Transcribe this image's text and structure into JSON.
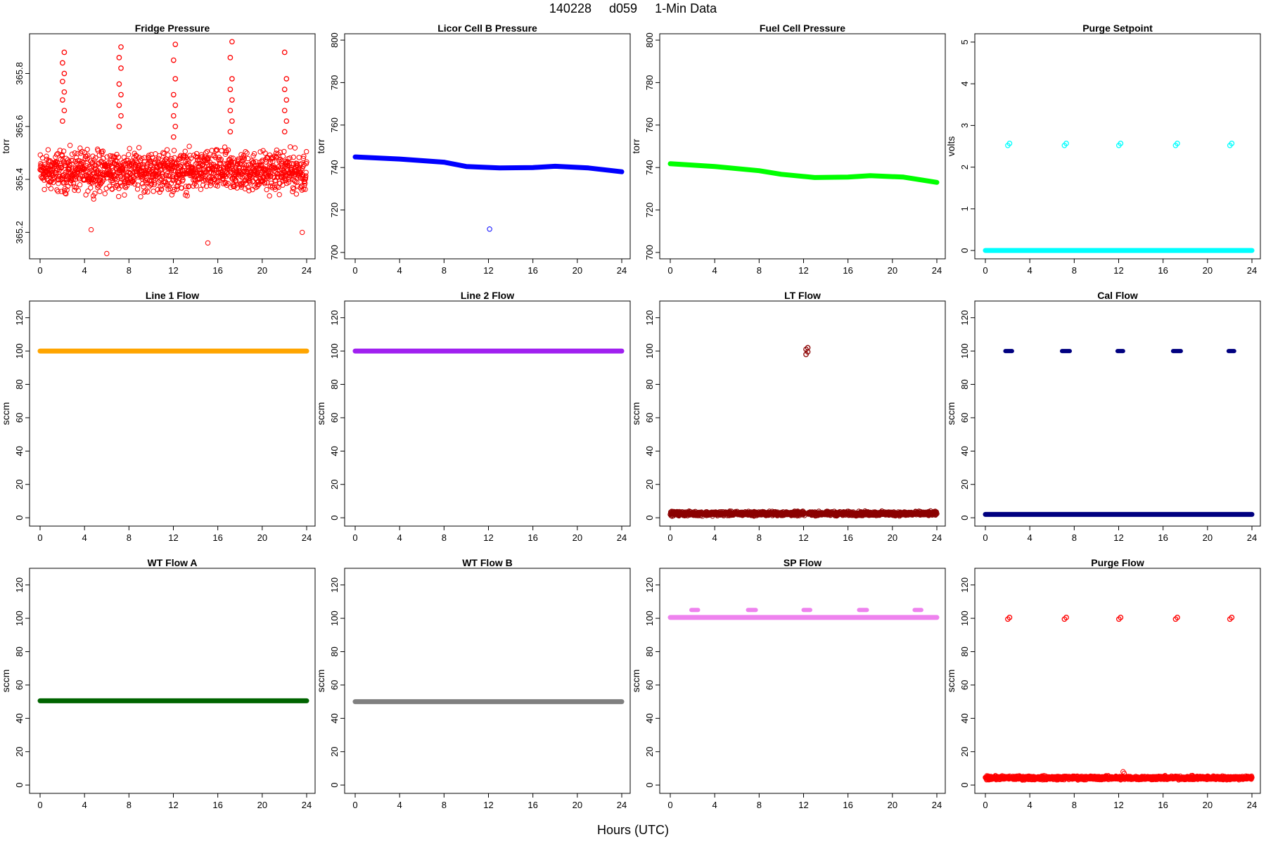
{
  "header": {
    "date_code": "140228",
    "day_code": "d059",
    "resolution": "1-Min Data"
  },
  "x_axis_label": "Hours (UTC)",
  "chart_data": [
    {
      "type": "scatter",
      "title": "Fridge Pressure",
      "ylabel": "torr",
      "color": "#ff0000",
      "xlim": [
        0,
        24
      ],
      "xticks": [
        0,
        4,
        8,
        12,
        16,
        20,
        24
      ],
      "ylim": [
        365.1,
        365.95
      ],
      "yticks": [
        365.2,
        365.4,
        365.6,
        365.8
      ],
      "series": [
        {
          "baseline": {
            "from": 0,
            "to": 24,
            "y": 365.43,
            "spread": 0.11
          },
          "segments": [],
          "clusters": [
            {
              "x": 2.1,
              "y": [
                365.62,
                365.66,
                365.7,
                365.73,
                365.77,
                365.8,
                365.84,
                365.88
              ]
            },
            {
              "x": 7.2,
              "y": [
                365.6,
                365.64,
                365.68,
                365.72,
                365.76,
                365.82,
                365.86,
                365.9
              ]
            },
            {
              "x": 12.1,
              "y": [
                365.56,
                365.6,
                365.64,
                365.68,
                365.72,
                365.78,
                365.85,
                365.91
              ]
            },
            {
              "x": 17.2,
              "y": [
                365.58,
                365.62,
                365.66,
                365.7,
                365.74,
                365.78,
                365.86,
                365.92
              ]
            },
            {
              "x": 22.1,
              "y": [
                365.58,
                365.62,
                365.66,
                365.7,
                365.74,
                365.78,
                365.88
              ]
            }
          ],
          "points": [
            {
              "x": 6.0,
              "y": 365.12
            },
            {
              "x": 15.1,
              "y": 365.16
            },
            {
              "x": 23.6,
              "y": 365.2
            },
            {
              "x": 4.6,
              "y": 365.21
            }
          ]
        }
      ]
    },
    {
      "type": "scatter",
      "title": "Licor Cell B Pressure",
      "ylabel": "torr",
      "color": "#0000ff",
      "xlim": [
        0,
        24
      ],
      "xticks": [
        0,
        4,
        8,
        12,
        16,
        20,
        24
      ],
      "ylim": [
        697,
        803
      ],
      "yticks": [
        700,
        720,
        740,
        760,
        780,
        800
      ],
      "series": [
        {
          "segments": [
            {
              "x": [
                0,
                4,
                8,
                10,
                13,
                16,
                18,
                21,
                24
              ],
              "y": [
                745,
                744,
                742.5,
                740.5,
                739.8,
                740,
                740.6,
                739.8,
                738
              ]
            }
          ],
          "clusters": [],
          "points": [
            {
              "x": 12.1,
              "y": 711
            }
          ]
        }
      ]
    },
    {
      "type": "scatter",
      "title": "Fuel Cell Pressure",
      "ylabel": "torr",
      "color": "#00ff00",
      "xlim": [
        0,
        24
      ],
      "xticks": [
        0,
        4,
        8,
        12,
        16,
        20,
        24
      ],
      "ylim": [
        697,
        803
      ],
      "yticks": [
        700,
        720,
        740,
        760,
        780,
        800
      ],
      "series": [
        {
          "segments": [
            {
              "x": [
                0,
                4,
                8,
                10,
                13,
                16,
                18,
                21,
                24
              ],
              "y": [
                741.8,
                740.5,
                738.5,
                736.8,
                735.3,
                735.5,
                736.2,
                735.5,
                733
              ]
            }
          ],
          "clusters": [],
          "points": []
        }
      ]
    },
    {
      "type": "scatter",
      "title": "Purge Setpoint",
      "ylabel": "volts",
      "color": "#00ffff",
      "xlim": [
        0,
        24
      ],
      "xticks": [
        0,
        4,
        8,
        12,
        16,
        20,
        24
      ],
      "ylim": [
        -0.2,
        5.2
      ],
      "yticks": [
        0,
        1,
        2,
        3,
        4,
        5
      ],
      "series": [
        {
          "segments": [
            {
              "x": [
                0,
                24
              ],
              "y": [
                0,
                0
              ]
            }
          ],
          "clusters": [
            {
              "x": 2.1,
              "y": [
                2.52,
                2.57
              ]
            },
            {
              "x": 7.2,
              "y": [
                2.52,
                2.57
              ]
            },
            {
              "x": 12.1,
              "y": [
                2.52,
                2.57
              ]
            },
            {
              "x": 17.2,
              "y": [
                2.52,
                2.57
              ]
            },
            {
              "x": 22.1,
              "y": [
                2.52,
                2.57
              ]
            }
          ],
          "points": []
        }
      ]
    },
    {
      "type": "scatter",
      "title": "Line 1 Flow",
      "ylabel": "sccm",
      "color": "#ffa500",
      "xlim": [
        0,
        24
      ],
      "xticks": [
        0,
        4,
        8,
        12,
        16,
        20,
        24
      ],
      "ylim": [
        -5,
        130
      ],
      "yticks": [
        0,
        20,
        40,
        60,
        80,
        100,
        120
      ],
      "series": [
        {
          "segments": [
            {
              "x": [
                0,
                24
              ],
              "y": [
                100,
                100
              ]
            }
          ],
          "clusters": [],
          "points": []
        }
      ]
    },
    {
      "type": "scatter",
      "title": "Line 2 Flow",
      "ylabel": "sccm",
      "color": "#a020f0",
      "xlim": [
        0,
        24
      ],
      "xticks": [
        0,
        4,
        8,
        12,
        16,
        20,
        24
      ],
      "ylim": [
        -5,
        130
      ],
      "yticks": [
        0,
        20,
        40,
        60,
        80,
        100,
        120
      ],
      "series": [
        {
          "segments": [
            {
              "x": [
                0,
                24
              ],
              "y": [
                100,
                100
              ]
            }
          ],
          "clusters": [],
          "points": []
        }
      ]
    },
    {
      "type": "scatter",
      "title": "LT Flow",
      "ylabel": "sccm",
      "color": "#8b0000",
      "xlim": [
        0,
        24
      ],
      "xticks": [
        0,
        4,
        8,
        12,
        16,
        20,
        24
      ],
      "ylim": [
        -5,
        130
      ],
      "yticks": [
        0,
        20,
        40,
        60,
        80,
        100,
        120
      ],
      "series": [
        {
          "baseline": {
            "from": 0,
            "to": 24,
            "y": 2.5,
            "spread": 1.8,
            "gap": [
              12.1,
              12.4
            ]
          },
          "segments": [],
          "clusters": [
            {
              "x": 12.3,
              "y": [
                98,
                99.5,
                101,
                102
              ]
            }
          ],
          "points": []
        }
      ]
    },
    {
      "type": "scatter",
      "title": "Cal Flow",
      "ylabel": "sccm",
      "color": "#000080",
      "xlim": [
        0,
        24
      ],
      "xticks": [
        0,
        4,
        8,
        12,
        16,
        20,
        24
      ],
      "ylim": [
        -5,
        130
      ],
      "yticks": [
        0,
        20,
        40,
        60,
        80,
        100,
        120
      ],
      "series": [
        {
          "segments": [
            {
              "x": [
                0,
                24
              ],
              "y": [
                2,
                2
              ]
            }
          ],
          "clusters": [],
          "bars": [
            {
              "from": 1.8,
              "to": 2.4,
              "y": 100
            },
            {
              "from": 6.9,
              "to": 7.6,
              "y": 100
            },
            {
              "from": 11.9,
              "to": 12.4,
              "y": 100
            },
            {
              "from": 16.9,
              "to": 17.6,
              "y": 100
            },
            {
              "from": 21.9,
              "to": 22.4,
              "y": 100
            }
          ],
          "points": []
        }
      ]
    },
    {
      "type": "scatter",
      "title": "WT Flow A",
      "ylabel": "sccm",
      "color": "#006400",
      "xlim": [
        0,
        24
      ],
      "xticks": [
        0,
        4,
        8,
        12,
        16,
        20,
        24
      ],
      "ylim": [
        -5,
        130
      ],
      "yticks": [
        0,
        20,
        40,
        60,
        80,
        100,
        120
      ],
      "series": [
        {
          "segments": [
            {
              "x": [
                0,
                24
              ],
              "y": [
                50.5,
                50.5
              ]
            }
          ],
          "clusters": [],
          "points": []
        }
      ]
    },
    {
      "type": "scatter",
      "title": "WT Flow B",
      "ylabel": "sccm",
      "color": "#808080",
      "xlim": [
        0,
        24
      ],
      "xticks": [
        0,
        4,
        8,
        12,
        16,
        20,
        24
      ],
      "ylim": [
        -5,
        130
      ],
      "yticks": [
        0,
        20,
        40,
        60,
        80,
        100,
        120
      ],
      "series": [
        {
          "segments": [
            {
              "x": [
                0,
                24
              ],
              "y": [
                50,
                50
              ]
            }
          ],
          "clusters": [],
          "points": []
        }
      ]
    },
    {
      "type": "scatter",
      "title": "SP Flow",
      "ylabel": "sccm",
      "color": "#ee82ee",
      "xlim": [
        0,
        24
      ],
      "xticks": [
        0,
        4,
        8,
        12,
        16,
        20,
        24
      ],
      "ylim": [
        -5,
        130
      ],
      "yticks": [
        0,
        20,
        40,
        60,
        80,
        100,
        120
      ],
      "series": [
        {
          "segments": [
            {
              "x": [
                0,
                24
              ],
              "y": [
                100.5,
                100.5
              ]
            }
          ],
          "clusters": [],
          "bars": [
            {
              "from": 1.9,
              "to": 2.5,
              "y": 105
            },
            {
              "from": 7.0,
              "to": 7.7,
              "y": 105
            },
            {
              "from": 12.0,
              "to": 12.6,
              "y": 105
            },
            {
              "from": 17.0,
              "to": 17.7,
              "y": 105
            },
            {
              "from": 22.0,
              "to": 22.6,
              "y": 105
            }
          ],
          "points": []
        }
      ]
    },
    {
      "type": "scatter",
      "title": "Purge Flow",
      "ylabel": "sccm",
      "color": "#ff0000",
      "xlim": [
        0,
        24
      ],
      "xticks": [
        0,
        4,
        8,
        12,
        16,
        20,
        24
      ],
      "ylim": [
        -5,
        130
      ],
      "yticks": [
        0,
        20,
        40,
        60,
        80,
        100,
        120
      ],
      "series": [
        {
          "baseline": {
            "from": 0,
            "to": 24,
            "y": 4.3,
            "spread": 1.6
          },
          "segments": [],
          "clusters": [
            {
              "x": 2.1,
              "y": [
                99.5,
                100.5
              ]
            },
            {
              "x": 7.2,
              "y": [
                99.5,
                100.5
              ]
            },
            {
              "x": 12.1,
              "y": [
                99.5,
                100.5
              ]
            },
            {
              "x": 17.2,
              "y": [
                99.5,
                100.5
              ]
            },
            {
              "x": 22.1,
              "y": [
                99.5,
                100.5
              ]
            }
          ],
          "points": [
            {
              "x": 12.4,
              "y": 8
            },
            {
              "x": 12.5,
              "y": 7
            }
          ]
        }
      ]
    }
  ]
}
